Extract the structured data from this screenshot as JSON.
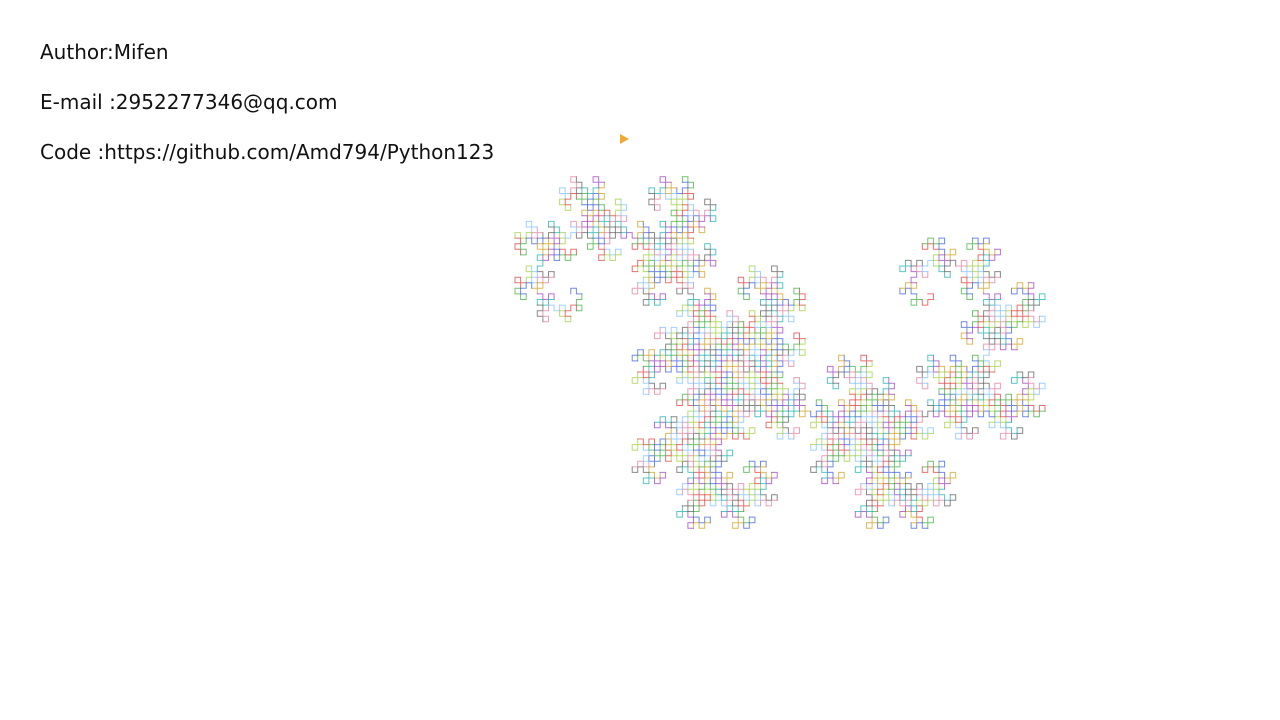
{
  "window": {
    "background": "#ffffff"
  },
  "info": {
    "author": "Author:Mifen",
    "email": "E-mail :2952277346@qq.com",
    "code": "Code :https://github.com/Amd794/Python123"
  },
  "drawing": {
    "kind": "dragon-curve",
    "iterations": 12,
    "palette": [
      "#e04040",
      "#40b040",
      "#4060e0",
      "#d0a020",
      "#a040c0",
      "#20b0b0",
      "#606060",
      "#e080a0",
      "#80c0ff",
      "#a0d040"
    ],
    "cursor_icon": "turtle-cursor-icon",
    "cursor_color": "#f0a020"
  }
}
